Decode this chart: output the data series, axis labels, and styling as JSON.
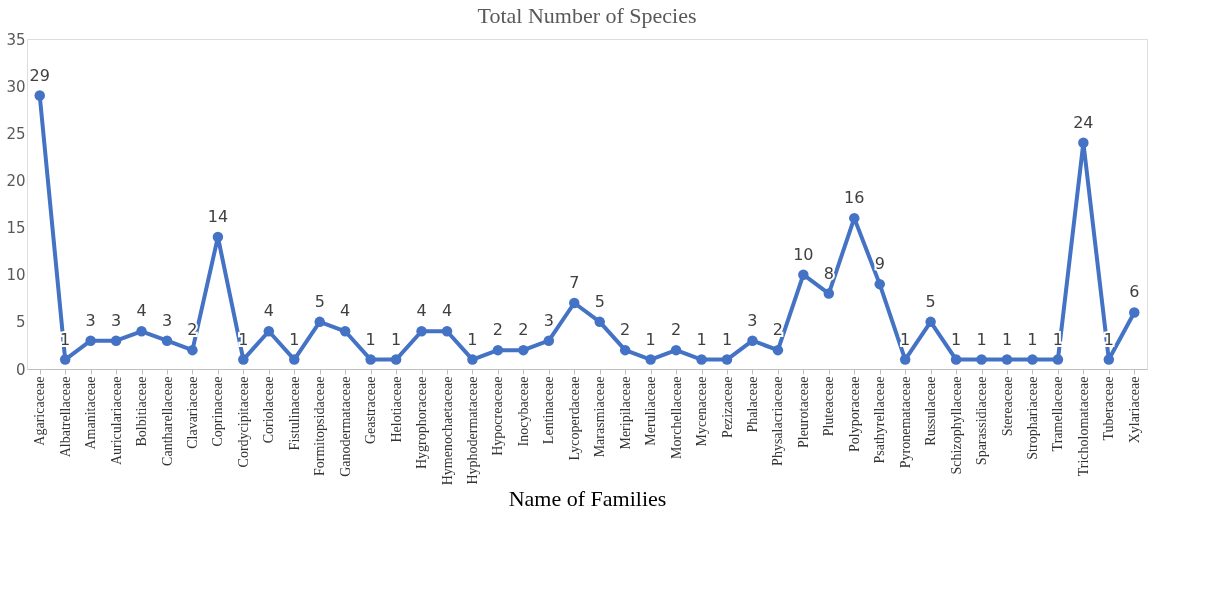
{
  "chart_data": {
    "type": "line",
    "title": "Total Number of Species",
    "xlabel": "Name of Families",
    "categories": [
      "Agaricaceae",
      "Albatrellaceae",
      "Amanitaceae",
      "Auriculariaceae",
      "Bolbitiaceae",
      "Cantharellaceae",
      "Clavariaceae",
      "Coprinaceae",
      "Cordycipitaceae",
      "Coriolaceae",
      "Fistulinaceae",
      "Formitopsidaceae",
      "Ganodermataceae",
      "Geastraceae",
      "Helotiaceae",
      "Hygrophoraceae",
      "Hymenochaetaceae",
      "Hyphodermataceae",
      "Hypocreaceae",
      "Inocybaceae",
      "Lentinaceae",
      "Lycoperdaceae",
      "Marasmiaceae",
      "Meripilaceae",
      "Meruliaceae",
      "Morchellaceae",
      "Mycenaceae",
      "Pezizaceae",
      "Phalaceae",
      "Physalacriaceae",
      "Pleurotaceae",
      "Pluteaceae",
      "Polyporaceae",
      "Psathyrellaceae",
      "Pyronemataceae",
      "Russulaceae",
      "Schizophyllaceae",
      "Sparassidiaceae",
      "Stereaceae",
      "Strophariaceae",
      "Tramellaceae",
      "Tricholomataceae",
      "Tuberaceae",
      "Xylariaceae"
    ],
    "values": [
      29,
      1,
      3,
      3,
      4,
      3,
      2,
      14,
      1,
      4,
      1,
      5,
      4,
      1,
      1,
      4,
      4,
      1,
      2,
      2,
      3,
      7,
      5,
      2,
      1,
      2,
      1,
      1,
      3,
      2,
      10,
      8,
      16,
      9,
      1,
      5,
      1,
      1,
      1,
      1,
      1,
      24,
      1,
      6
    ],
    "color": "#4472c4",
    "ylim": [
      0,
      35
    ],
    "yticks": [
      0,
      5,
      10,
      15,
      20,
      25,
      30,
      35
    ],
    "grid": false,
    "marker": "circle",
    "line_style": "solid",
    "data_labels": true
  }
}
